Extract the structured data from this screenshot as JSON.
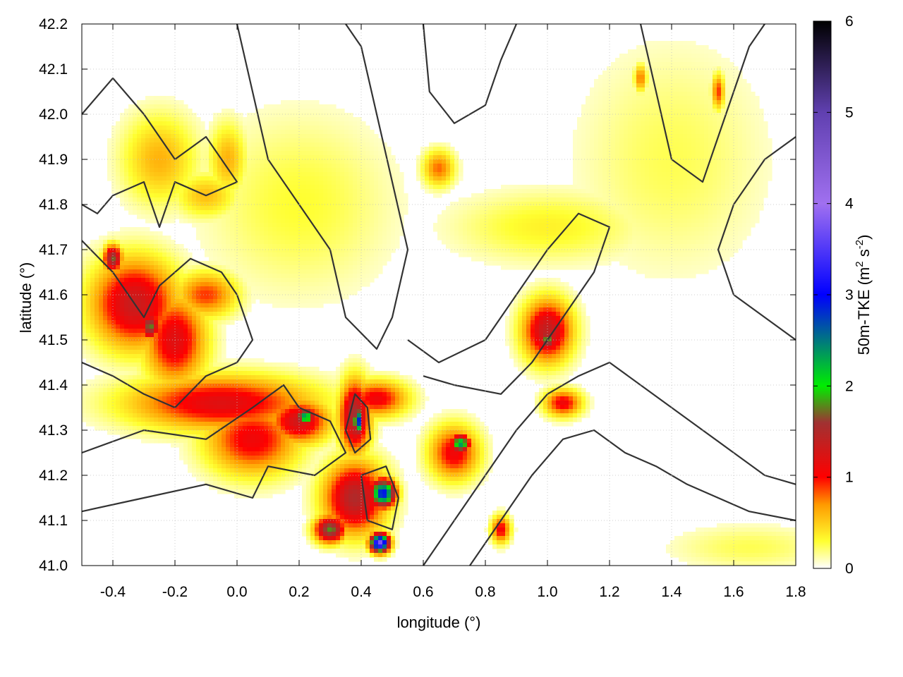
{
  "chart_data": {
    "type": "heatmap",
    "title": "",
    "xlabel": "longitude (°)",
    "ylabel": "latitude (°)",
    "xlim": [
      -0.5,
      1.8
    ],
    "ylim": [
      41.0,
      42.2
    ],
    "x_ticks": [
      -0.4,
      -0.2,
      0.0,
      0.2,
      0.4,
      0.6,
      0.8,
      1.0,
      1.2,
      1.4,
      1.6,
      1.8
    ],
    "x_tick_labels": [
      "-0.4",
      "-0.2",
      "0.0",
      "0.2",
      "0.4",
      "0.6",
      "0.8",
      "1.0",
      "1.2",
      "1.4",
      "1.6",
      "1.8"
    ],
    "y_ticks": [
      41.0,
      41.1,
      41.2,
      41.3,
      41.4,
      41.5,
      41.6,
      41.7,
      41.8,
      41.9,
      42.0,
      42.1,
      42.2
    ],
    "y_tick_labels": [
      "41.0",
      "41.1",
      "41.2",
      "41.3",
      "41.4",
      "41.5",
      "41.6",
      "41.7",
      "41.8",
      "41.9",
      "42.0",
      "42.1",
      "42.2"
    ],
    "grid": true,
    "colorbar": {
      "label": "50m-TKE (m2 s-2)",
      "label_parts": {
        "a": "50m-TKE (m",
        "b": "2",
        "c": " s",
        "d": "-2",
        "e": ")"
      },
      "range": [
        0,
        6
      ],
      "ticks": [
        0,
        1,
        2,
        3,
        4,
        5,
        6
      ],
      "tick_labels": [
        "0",
        "1",
        "2",
        "3",
        "4",
        "5",
        "6"
      ],
      "stops": [
        {
          "value": 0.0,
          "color": "#ffffff"
        },
        {
          "value": 0.3,
          "color": "#ffff30"
        },
        {
          "value": 0.7,
          "color": "#ff9a00"
        },
        {
          "value": 1.0,
          "color": "#ff0000"
        },
        {
          "value": 1.6,
          "color": "#a03232"
        },
        {
          "value": 2.0,
          "color": "#00ee00"
        },
        {
          "value": 3.0,
          "color": "#0000ff"
        },
        {
          "value": 4.0,
          "color": "#a070f0"
        },
        {
          "value": 5.0,
          "color": "#6040b0"
        },
        {
          "value": 6.0,
          "color": "#000000"
        }
      ]
    },
    "contour_color": "#333333",
    "tke_features": [
      {
        "lon": -0.33,
        "lat": 41.58,
        "sx": 0.14,
        "sy": 0.1,
        "v": 1.35
      },
      {
        "lon": -0.2,
        "lat": 41.5,
        "sx": 0.1,
        "sy": 0.1,
        "v": 1.2
      },
      {
        "lon": -0.28,
        "lat": 41.53,
        "sx": 0.03,
        "sy": 0.03,
        "v": 1.8
      },
      {
        "lon": -0.4,
        "lat": 41.68,
        "sx": 0.03,
        "sy": 0.03,
        "v": 1.7
      },
      {
        "lon": -0.05,
        "lat": 41.36,
        "sx": 0.3,
        "sy": 0.06,
        "v": 1.2
      },
      {
        "lon": 0.05,
        "lat": 41.28,
        "sx": 0.15,
        "sy": 0.08,
        "v": 1.1
      },
      {
        "lon": -0.1,
        "lat": 41.6,
        "sx": 0.1,
        "sy": 0.05,
        "v": 0.9
      },
      {
        "lon": -0.25,
        "lat": 41.9,
        "sx": 0.12,
        "sy": 0.1,
        "v": 0.6
      },
      {
        "lon": -0.03,
        "lat": 41.9,
        "sx": 0.06,
        "sy": 0.08,
        "v": 0.6
      },
      {
        "lon": -0.1,
        "lat": 41.82,
        "sx": 0.1,
        "sy": 0.05,
        "v": 0.55
      },
      {
        "lon": 0.2,
        "lat": 41.32,
        "sx": 0.1,
        "sy": 0.05,
        "v": 1.3
      },
      {
        "lon": 0.22,
        "lat": 41.33,
        "sx": 0.03,
        "sy": 0.02,
        "v": 2.4
      },
      {
        "lon": 0.38,
        "lat": 41.33,
        "sx": 0.05,
        "sy": 0.08,
        "v": 1.6
      },
      {
        "lon": 0.39,
        "lat": 41.32,
        "sx": 0.015,
        "sy": 0.03,
        "v": 3.0
      },
      {
        "lon": 0.38,
        "lat": 41.15,
        "sx": 0.1,
        "sy": 0.08,
        "v": 1.5
      },
      {
        "lon": 0.47,
        "lat": 41.16,
        "sx": 0.04,
        "sy": 0.03,
        "v": 3.0
      },
      {
        "lon": 0.3,
        "lat": 41.08,
        "sx": 0.05,
        "sy": 0.03,
        "v": 1.8
      },
      {
        "lon": 0.46,
        "lat": 41.05,
        "sx": 0.03,
        "sy": 0.02,
        "v": 3.8
      },
      {
        "lon": 0.45,
        "lat": 41.37,
        "sx": 0.1,
        "sy": 0.04,
        "v": 1.1
      },
      {
        "lon": 0.7,
        "lat": 41.25,
        "sx": 0.08,
        "sy": 0.06,
        "v": 1.1
      },
      {
        "lon": 0.72,
        "lat": 41.27,
        "sx": 0.03,
        "sy": 0.02,
        "v": 2.4
      },
      {
        "lon": 1.0,
        "lat": 41.52,
        "sx": 0.08,
        "sy": 0.07,
        "v": 1.4
      },
      {
        "lon": 1.0,
        "lat": 41.5,
        "sx": 0.025,
        "sy": 0.025,
        "v": 1.9
      },
      {
        "lon": 1.05,
        "lat": 41.36,
        "sx": 0.06,
        "sy": 0.03,
        "v": 1.1
      },
      {
        "lon": 0.85,
        "lat": 41.08,
        "sx": 0.03,
        "sy": 0.03,
        "v": 1.1
      },
      {
        "lon": 0.65,
        "lat": 41.88,
        "sx": 0.05,
        "sy": 0.04,
        "v": 0.8
      },
      {
        "lon": 1.55,
        "lat": 42.05,
        "sx": 0.02,
        "sy": 0.04,
        "v": 0.9
      },
      {
        "lon": 1.3,
        "lat": 42.08,
        "sx": 0.02,
        "sy": 0.03,
        "v": 0.8
      },
      {
        "lon": 1.65,
        "lat": 41.04,
        "sx": 0.25,
        "sy": 0.05,
        "v": 0.25
      },
      {
        "lon": 1.0,
        "lat": 41.75,
        "sx": 0.3,
        "sy": 0.08,
        "v": 0.35
      },
      {
        "lon": 0.2,
        "lat": 41.8,
        "sx": 0.3,
        "sy": 0.2,
        "v": 0.3
      },
      {
        "lon": 1.4,
        "lat": 41.9,
        "sx": 0.3,
        "sy": 0.25,
        "v": 0.25
      }
    ],
    "contour_lines": [
      [
        [
          -0.5,
          42.0
        ],
        [
          -0.4,
          42.08
        ],
        [
          -0.3,
          42.0
        ],
        [
          -0.2,
          41.9
        ],
        [
          -0.1,
          41.95
        ],
        [
          0.0,
          41.85
        ],
        [
          -0.1,
          41.82
        ],
        [
          -0.2,
          41.85
        ],
        [
          -0.25,
          41.75
        ],
        [
          -0.3,
          41.85
        ],
        [
          -0.4,
          41.82
        ],
        [
          -0.45,
          41.78
        ],
        [
          -0.5,
          41.8
        ]
      ],
      [
        [
          -0.5,
          41.72
        ],
        [
          -0.4,
          41.65
        ],
        [
          -0.3,
          41.55
        ],
        [
          -0.25,
          41.62
        ],
        [
          -0.15,
          41.68
        ],
        [
          -0.05,
          41.65
        ],
        [
          0.0,
          41.6
        ],
        [
          0.05,
          41.5
        ],
        [
          0.0,
          41.45
        ],
        [
          -0.1,
          41.42
        ],
        [
          -0.2,
          41.35
        ],
        [
          -0.3,
          41.38
        ],
        [
          -0.4,
          41.42
        ],
        [
          -0.5,
          41.45
        ]
      ],
      [
        [
          -0.5,
          41.25
        ],
        [
          -0.3,
          41.3
        ],
        [
          -0.1,
          41.28
        ],
        [
          0.05,
          41.35
        ],
        [
          0.15,
          41.4
        ],
        [
          0.2,
          41.35
        ],
        [
          0.3,
          41.32
        ],
        [
          0.35,
          41.25
        ],
        [
          0.25,
          41.2
        ],
        [
          0.1,
          41.22
        ],
        [
          0.05,
          41.15
        ],
        [
          -0.1,
          41.18
        ],
        [
          -0.3,
          41.15
        ],
        [
          -0.5,
          41.12
        ]
      ],
      [
        [
          0.0,
          42.2
        ],
        [
          0.05,
          42.05
        ],
        [
          0.1,
          41.9
        ],
        [
          0.2,
          41.8
        ],
        [
          0.3,
          41.7
        ],
        [
          0.35,
          41.55
        ],
        [
          0.45,
          41.48
        ],
        [
          0.5,
          41.55
        ],
        [
          0.55,
          41.7
        ],
        [
          0.5,
          41.85
        ],
        [
          0.45,
          42.0
        ],
        [
          0.4,
          42.15
        ],
        [
          0.35,
          42.2
        ]
      ],
      [
        [
          0.6,
          42.2
        ],
        [
          0.62,
          42.05
        ],
        [
          0.7,
          41.98
        ],
        [
          0.8,
          42.02
        ],
        [
          0.85,
          42.12
        ],
        [
          0.9,
          42.2
        ]
      ],
      [
        [
          0.55,
          41.5
        ],
        [
          0.65,
          41.45
        ],
        [
          0.8,
          41.5
        ],
        [
          0.9,
          41.6
        ],
        [
          1.0,
          41.7
        ],
        [
          1.1,
          41.78
        ],
        [
          1.2,
          41.75
        ],
        [
          1.15,
          41.65
        ],
        [
          1.05,
          41.55
        ],
        [
          0.95,
          41.45
        ],
        [
          0.85,
          41.38
        ],
        [
          0.7,
          41.4
        ],
        [
          0.6,
          41.42
        ]
      ],
      [
        [
          0.6,
          41.0
        ],
        [
          0.7,
          41.1
        ],
        [
          0.8,
          41.2
        ],
        [
          0.9,
          41.3
        ],
        [
          1.0,
          41.38
        ],
        [
          1.1,
          41.42
        ],
        [
          1.2,
          41.45
        ],
        [
          1.3,
          41.4
        ],
        [
          1.4,
          41.35
        ],
        [
          1.5,
          41.3
        ],
        [
          1.6,
          41.25
        ],
        [
          1.7,
          41.2
        ],
        [
          1.8,
          41.18
        ]
      ],
      [
        [
          0.75,
          41.0
        ],
        [
          0.85,
          41.1
        ],
        [
          0.95,
          41.2
        ],
        [
          1.05,
          41.28
        ],
        [
          1.15,
          41.3
        ],
        [
          1.25,
          41.25
        ],
        [
          1.35,
          41.22
        ],
        [
          1.45,
          41.18
        ],
        [
          1.55,
          41.15
        ],
        [
          1.65,
          41.12
        ],
        [
          1.8,
          41.1
        ]
      ],
      [
        [
          1.3,
          42.2
        ],
        [
          1.35,
          42.05
        ],
        [
          1.4,
          41.9
        ],
        [
          1.5,
          41.85
        ],
        [
          1.55,
          41.95
        ],
        [
          1.6,
          42.05
        ],
        [
          1.65,
          42.15
        ],
        [
          1.7,
          42.2
        ]
      ],
      [
        [
          1.8,
          41.95
        ],
        [
          1.7,
          41.9
        ],
        [
          1.6,
          41.8
        ],
        [
          1.55,
          41.7
        ],
        [
          1.6,
          41.6
        ],
        [
          1.7,
          41.55
        ],
        [
          1.8,
          41.5
        ]
      ],
      [
        [
          0.35,
          41.3
        ],
        [
          0.38,
          41.38
        ],
        [
          0.42,
          41.35
        ],
        [
          0.43,
          41.28
        ],
        [
          0.38,
          41.25
        ],
        [
          0.35,
          41.3
        ]
      ],
      [
        [
          0.4,
          41.2
        ],
        [
          0.48,
          41.22
        ],
        [
          0.52,
          41.15
        ],
        [
          0.5,
          41.08
        ],
        [
          0.42,
          41.1
        ],
        [
          0.4,
          41.2
        ]
      ]
    ]
  }
}
